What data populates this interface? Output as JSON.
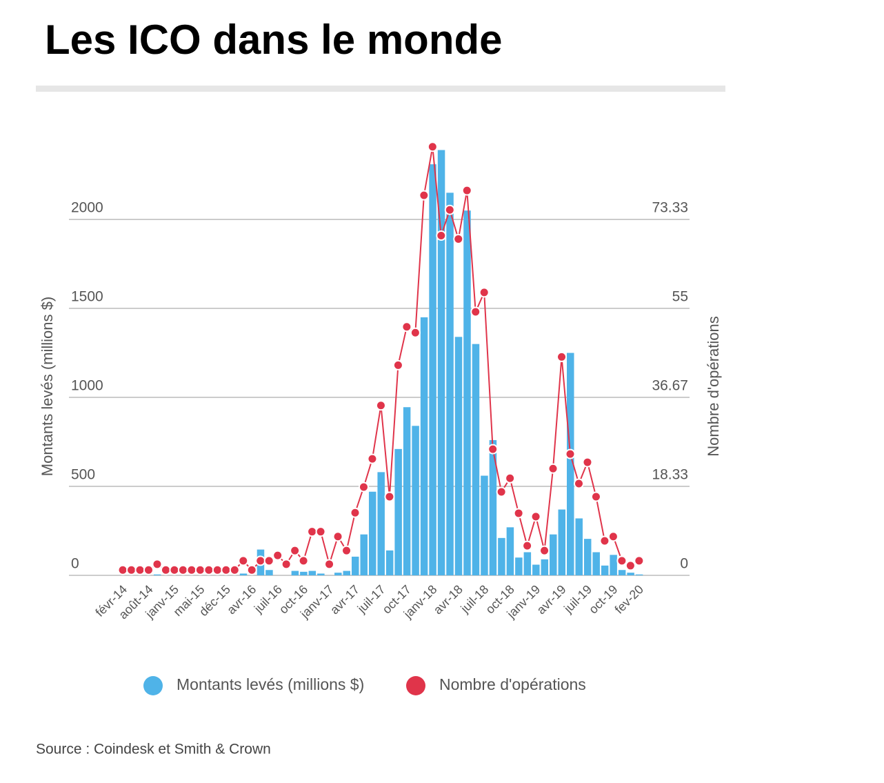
{
  "chart_data": {
    "type": "bar_line",
    "title": "Les ICO dans le monde",
    "ylabel": "Montants levés (millions $)",
    "y2label": "Nombre d'opérations",
    "source": "Source : Coindesk et Smith & Crown",
    "categories": [
      "févr-14",
      null,
      null,
      "août-14",
      null,
      null,
      "janv-15",
      null,
      null,
      "mai-15",
      null,
      null,
      "déc-15",
      null,
      null,
      "avr-16",
      null,
      null,
      "juil-16",
      null,
      null,
      "oct-16",
      null,
      null,
      "janv-17",
      null,
      null,
      "avr-17",
      null,
      null,
      "juil-17",
      null,
      null,
      "oct-17",
      null,
      null,
      "janv-18",
      null,
      null,
      "avr-18",
      null,
      null,
      "juil-18",
      null,
      null,
      "oct-18",
      null,
      null,
      "janv-19",
      null,
      null,
      "avr-19",
      null,
      null,
      "juil-19",
      null,
      null,
      "oct-19",
      null,
      null,
      "fev-20"
    ],
    "series": [
      {
        "name": "Montants levés (millions $)",
        "color": "#4fb3e8",
        "kind": "bar",
        "values": [
          0,
          0,
          0,
          0,
          5,
          0,
          0,
          0,
          0,
          0,
          0,
          0,
          0,
          0,
          10,
          0,
          145,
          30,
          0,
          0,
          25,
          20,
          25,
          10,
          0,
          15,
          25,
          105,
          230,
          470,
          580,
          140,
          710,
          945,
          840,
          1450,
          2310,
          2390,
          2150,
          1340,
          2050,
          1300,
          560,
          760,
          210,
          270,
          100,
          130,
          60,
          90,
          230,
          370,
          1250,
          320,
          205,
          130,
          55,
          115,
          30,
          15,
          5
        ]
      },
      {
        "name": "Nombre d'opérations",
        "color": "#e0344a",
        "kind": "line",
        "axis": "y2",
        "values": [
          1.1,
          1.1,
          1.1,
          1.1,
          2.3,
          1.1,
          1.1,
          1.1,
          1.1,
          1.1,
          1.1,
          1.1,
          1.1,
          1.1,
          3,
          1.1,
          3,
          3,
          4.1,
          2.3,
          5.1,
          3,
          9,
          9,
          2.3,
          8,
          5.1,
          12.9,
          18.2,
          24,
          35,
          16.2,
          43.3,
          51.2,
          50,
          78.3,
          88.3,
          70,
          75.3,
          69.3,
          79.3,
          54.3,
          58.3,
          26,
          17.2,
          20,
          12.8,
          6.1,
          12.1,
          5.1,
          22,
          45,
          25,
          18.9,
          23.3,
          16.2,
          7.1,
          8,
          3,
          2,
          3
        ]
      }
    ],
    "ylim": [
      0,
      2450
    ],
    "yticks": [
      0,
      500,
      1000,
      1500,
      2000
    ],
    "y2lim": [
      0,
      89.83
    ],
    "y2ticks": [
      0,
      18.33,
      36.67,
      55,
      73.33
    ],
    "grid": true
  }
}
